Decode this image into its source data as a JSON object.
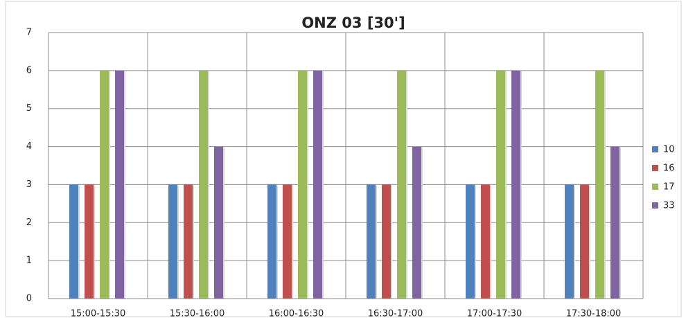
{
  "chart_data": {
    "type": "bar",
    "title": "ONZ 03 [30']",
    "categories": [
      "15:00-15:30",
      "15:30-16:00",
      "16:00-16:30",
      "16:30-17:00",
      "17:00-17:30",
      "17:30-18:00"
    ],
    "series": [
      {
        "name": "10",
        "color": "#4f81bd",
        "values": [
          3,
          3,
          3,
          3,
          3,
          3
        ]
      },
      {
        "name": "16",
        "color": "#c0504d",
        "values": [
          3,
          3,
          3,
          3,
          3,
          3
        ]
      },
      {
        "name": "17",
        "color": "#9bbb59",
        "values": [
          6,
          6,
          6,
          6,
          6,
          6
        ]
      },
      {
        "name": "33",
        "color": "#8064a2",
        "values": [
          6,
          4,
          6,
          4,
          6,
          4
        ]
      }
    ],
    "ylim": [
      0,
      7
    ],
    "yticks": [
      0,
      1,
      2,
      3,
      4,
      5,
      6,
      7
    ],
    "grid": true,
    "legend": "right"
  }
}
